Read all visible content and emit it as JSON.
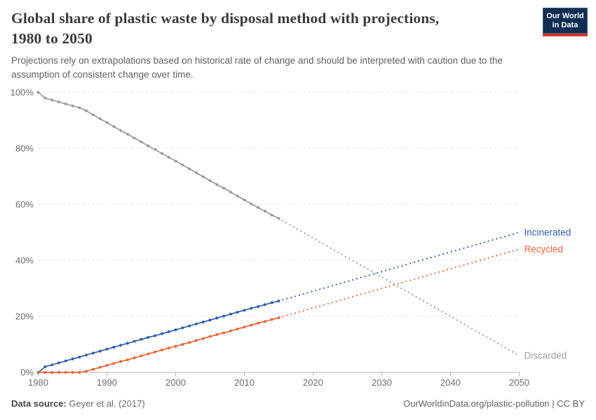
{
  "header": {
    "title_line1": "Global share of plastic waste by disposal method with projections,",
    "title_line2": "1980 to 2050",
    "subtitle_line1": "Projections rely on extrapolations based on historical rate of change and should be interpreted with caution due to the",
    "subtitle_line2": "assumption of consistent change over time.",
    "logo": {
      "line1": "Our World",
      "line2": "in Data",
      "bg_color": "#0d2e52",
      "accent_color": "#d7362c"
    }
  },
  "chart_data": {
    "type": "line",
    "title": "Global share of plastic waste by disposal method with projections, 1980 to 2050",
    "subtitle": "Projections rely on extrapolations based on historical rate of change and should be interpreted with caution due to the assumption of consistent change over time.",
    "xlabel": "",
    "ylabel": "",
    "x_range": [
      1980,
      2050
    ],
    "y_range": [
      0,
      100
    ],
    "grid": "dashed-horizontal",
    "legend_position": "end-of-line-labels",
    "x_ticks": [
      1980,
      1990,
      2000,
      2010,
      2020,
      2030,
      2040,
      2050
    ],
    "y_ticks": [
      {
        "value": 0,
        "label": "0%"
      },
      {
        "value": 20,
        "label": "20%"
      },
      {
        "value": 40,
        "label": "40%"
      },
      {
        "value": 60,
        "label": "60%"
      },
      {
        "value": 80,
        "label": "80%"
      },
      {
        "value": 100,
        "label": "100%"
      }
    ],
    "historical_start_year": 1980,
    "projection": {
      "start_year": 2015,
      "end_year": 2050,
      "style": "dotted"
    },
    "series": [
      {
        "name": "Discarded",
        "color": "#9b9b9b",
        "label_color": "#9e9e9e",
        "historical_values": [
          100,
          98,
          97.3,
          96.6,
          95.9,
          95.2,
          94.5,
          93.4,
          92,
          90.6,
          89.2,
          87.8,
          86.4,
          85.1,
          83.7,
          82.3,
          80.9,
          79.6,
          78.2,
          76.8,
          75.5,
          74.1,
          72.7,
          71.3,
          69.9,
          68.5,
          67.1,
          65.8,
          64.4,
          63,
          61.6,
          60.2,
          58.9,
          57.6,
          56.2,
          55
        ],
        "value_2015": 55,
        "projection_end_value": 6
      },
      {
        "name": "Incinerated",
        "color": "#3360a9",
        "label_color": "#3360a9",
        "historical_values": [
          0,
          2,
          2.7,
          3.4,
          4.1,
          4.8,
          5.5,
          6.2,
          6.9,
          7.6,
          8.3,
          9,
          9.7,
          10.4,
          11.1,
          11.8,
          12.5,
          13.1,
          13.8,
          14.5,
          15.2,
          15.9,
          16.6,
          17.3,
          18,
          18.7,
          19.4,
          20.1,
          20.8,
          21.5,
          22.2,
          22.9,
          23.5,
          24.2,
          24.9,
          25.5
        ],
        "value_2015": 25.5,
        "projection_end_value": 50
      },
      {
        "name": "Recycled",
        "color": "#e8663c",
        "label_color": "#e8663c",
        "historical_values": [
          0,
          0,
          0,
          0,
          0,
          0,
          0,
          0.4,
          1.1,
          1.8,
          2.5,
          3.2,
          3.9,
          4.5,
          5.2,
          5.9,
          6.6,
          7.3,
          8,
          8.7,
          9.3,
          10,
          10.7,
          11.4,
          12.1,
          12.8,
          13.5,
          14.1,
          14.8,
          15.5,
          16.2,
          16.9,
          17.6,
          18.2,
          18.9,
          19.5
        ],
        "value_2015": 19.5,
        "projection_end_value": 44
      }
    ],
    "axis_color": "#b3b3b3",
    "gridline_color": "#dcdcdc",
    "tick_label_color": "#6b6b6b"
  },
  "footer": {
    "source_label": "Data source:",
    "source_text": " Geyer et al. (2017)",
    "right_text": "OurWorldinData.org/plastic-pollution | CC BY"
  }
}
